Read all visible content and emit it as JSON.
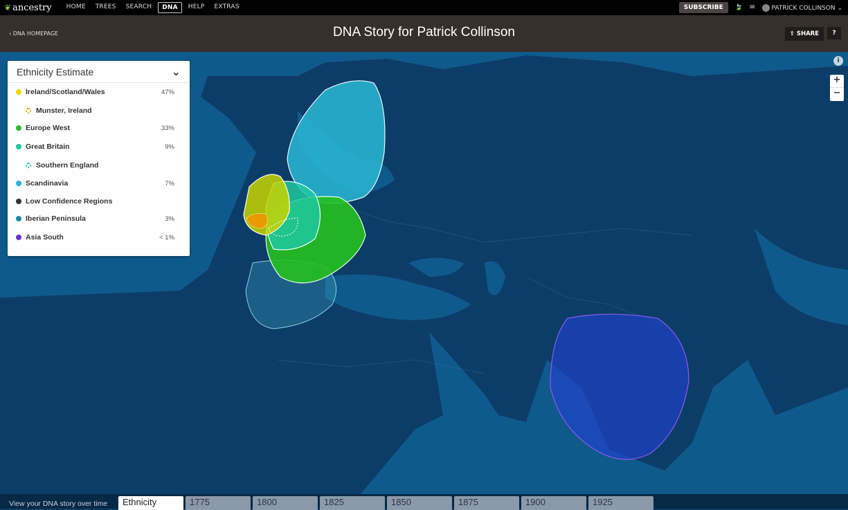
{
  "nav": {
    "logo": "ancestry",
    "items": [
      "HOME",
      "TREES",
      "SEARCH",
      "DNA",
      "HELP",
      "EXTRAS"
    ],
    "active": "DNA",
    "subscribe": "SUBSCRIBE",
    "user": "PATRICK COLLINSON"
  },
  "header": {
    "back": "DNA HOMEPAGE",
    "title": "DNA Story for Patrick Collinson",
    "share": "SHARE",
    "help": "?"
  },
  "panel": {
    "title": "Ethnicity Estimate",
    "items": [
      {
        "label": "Ireland/Scotland/Wales",
        "pct": "47%",
        "color": "#f2d600",
        "sub": false
      },
      {
        "label": "Munster, Ireland",
        "pct": "",
        "color": "#f0a000",
        "sub": true
      },
      {
        "label": "Europe West",
        "pct": "33%",
        "color": "#2db82d",
        "sub": false
      },
      {
        "label": "Great Britain",
        "pct": "9%",
        "color": "#1ec8a0",
        "sub": false
      },
      {
        "label": "Southern England",
        "pct": "",
        "color": "#1ec8a0",
        "sub": true
      },
      {
        "label": "Scandinavia",
        "pct": "7%",
        "color": "#27b5d8",
        "sub": false
      },
      {
        "label": "Low Confidence Regions",
        "pct": "",
        "color": "#333333",
        "sub": false
      },
      {
        "label": "Iberian Peninsula",
        "pct": "3%",
        "color": "#1a87a8",
        "sub": false
      },
      {
        "label": "Asia South",
        "pct": "< 1%",
        "color": "#6a2fd0",
        "sub": false
      }
    ]
  },
  "map": {
    "zoom_in": "+",
    "zoom_out": "−",
    "info": "i"
  },
  "timeline": {
    "label": "View your DNA story over time",
    "tabs": [
      "Ethnicity",
      "1775",
      "1800",
      "1825",
      "1850",
      "1875",
      "1900",
      "1925"
    ],
    "active": "Ethnicity"
  }
}
